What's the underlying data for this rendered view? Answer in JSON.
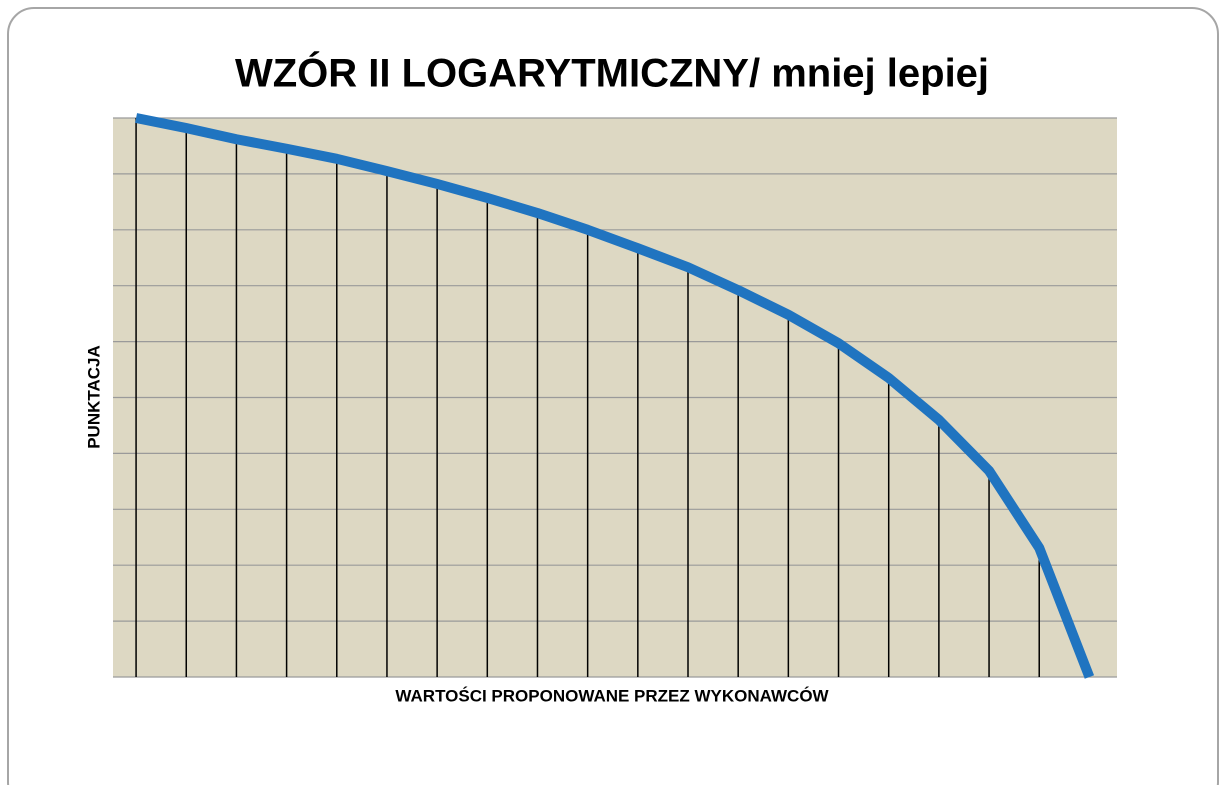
{
  "chart_data": {
    "type": "line",
    "title": "WZÓR II LOGARYTMICZNY/ mniej lepiej",
    "x_label": "WARTOŚCI PROPONOWANE PRZEZ WYKONAWCÓW",
    "y_label": "PUNKTACJA",
    "x": [
      0,
      1,
      2,
      3,
      4,
      5,
      6,
      7,
      8,
      9,
      10,
      11,
      12,
      13,
      14,
      15,
      16,
      17,
      18,
      19
    ],
    "values": [
      10,
      9.82,
      9.62,
      9.45,
      9.27,
      9.05,
      8.82,
      8.57,
      8.3,
      8,
      7.67,
      7.33,
      6.92,
      6.48,
      5.97,
      5.35,
      4.6,
      3.69,
      2.31,
      0
    ],
    "color": "#2074c0",
    "xlim": [
      -0.46,
      19.55
    ],
    "ylim": [
      0,
      10
    ],
    "yticks": [
      0,
      1,
      2,
      3,
      4,
      5,
      6,
      7,
      8,
      9,
      10
    ],
    "grid": true,
    "drop_lines": true
  }
}
